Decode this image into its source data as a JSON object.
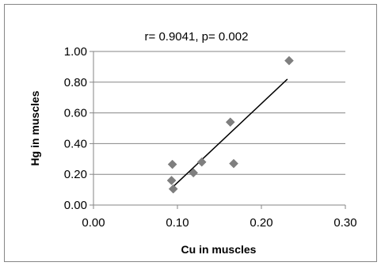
{
  "chart_data": {
    "type": "scatter",
    "title": "r= 0.9041, p= 0.002",
    "xlabel": "Cu in muscles",
    "ylabel": "Hg in muscles",
    "xlim": [
      0,
      0.3
    ],
    "ylim": [
      0,
      1.0
    ],
    "x_ticks": [
      "0.00",
      "0.10",
      "0.20",
      "0.30"
    ],
    "y_ticks": [
      "0.00",
      "0.20",
      "0.40",
      "0.60",
      "0.80",
      "1.00"
    ],
    "grid": "horizontal",
    "marker": "diamond",
    "points": [
      {
        "x": 0.094,
        "y": 0.265
      },
      {
        "x": 0.093,
        "y": 0.16
      },
      {
        "x": 0.095,
        "y": 0.105
      },
      {
        "x": 0.119,
        "y": 0.21
      },
      {
        "x": 0.129,
        "y": 0.28
      },
      {
        "x": 0.163,
        "y": 0.54
      },
      {
        "x": 0.167,
        "y": 0.27
      },
      {
        "x": 0.233,
        "y": 0.94
      }
    ],
    "trendline": {
      "x": [
        0.095,
        0.231
      ],
      "y": [
        0.12,
        0.82
      ]
    },
    "colors": {
      "marker": "#7f7f7f",
      "trendline": "#000000",
      "grid": "#868686",
      "frame": "#868686"
    }
  }
}
